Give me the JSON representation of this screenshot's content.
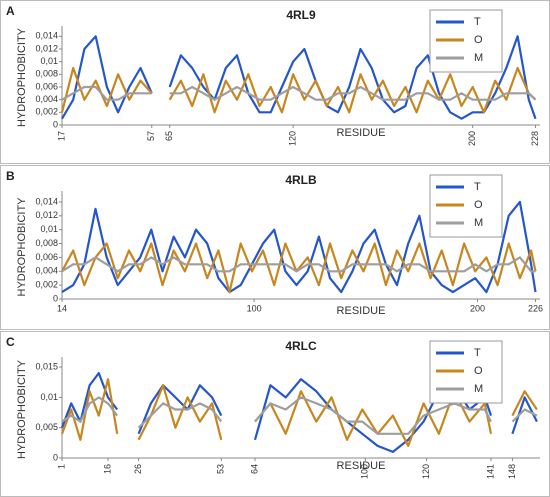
{
  "chart_data": [
    {
      "type": "line",
      "label": "A",
      "title": "4RL9",
      "xlabel": "RESIDUE",
      "ylabel": "HYDROPHOBICITY",
      "legend": "upper right",
      "grid": false,
      "x": [
        17,
        22,
        27,
        32,
        37,
        42,
        47,
        52,
        57,
        61,
        65,
        70,
        75,
        80,
        85,
        90,
        95,
        100,
        105,
        110,
        115,
        120,
        125,
        130,
        135,
        140,
        145,
        150,
        155,
        160,
        165,
        170,
        175,
        180,
        185,
        190,
        195,
        200,
        205,
        210,
        215,
        220,
        225,
        228
      ],
      "xlim": [
        17,
        230
      ],
      "xticks": [
        17,
        57,
        65,
        120,
        200,
        228
      ],
      "ylim": [
        0,
        0.015
      ],
      "yticks": [
        0,
        {
          "value": 0.002,
          "label": "0,002"
        },
        {
          "value": 0.004,
          "label": "0,004"
        },
        {
          "value": 0.006,
          "label": "0,006"
        },
        {
          "value": 0.008,
          "label": "0,008"
        },
        {
          "value": 0.01,
          "label": "0,01"
        },
        {
          "value": 0.012,
          "label": "0,012"
        },
        {
          "value": 0.014,
          "label": "0,014"
        }
      ],
      "series": [
        {
          "name": "T",
          "color": "#2456cc",
          "values": [
            0.001,
            0.004,
            0.012,
            0.014,
            0.006,
            0.002,
            0.006,
            0.009,
            0.005,
            null,
            0.006,
            0.011,
            0.009,
            0.006,
            0.004,
            0.009,
            0.011,
            0.005,
            0.002,
            0.002,
            0.006,
            0.01,
            0.012,
            0.007,
            0.003,
            0.002,
            0.006,
            0.012,
            0.009,
            0.004,
            0.002,
            0.003,
            0.009,
            0.011,
            0.005,
            0.002,
            0.001,
            0.002,
            0.002,
            0.005,
            0.009,
            0.014,
            0.004,
            0.001
          ]
        },
        {
          "name": "O",
          "color": "#c8861e",
          "values": [
            0.002,
            0.009,
            0.004,
            0.007,
            0.003,
            0.008,
            0.004,
            0.007,
            0.005,
            null,
            0.004,
            0.007,
            0.003,
            0.008,
            0.002,
            0.007,
            0.004,
            0.008,
            0.003,
            0.006,
            0.002,
            0.008,
            0.004,
            0.007,
            0.003,
            0.006,
            0.002,
            0.008,
            0.004,
            0.007,
            0.003,
            0.006,
            0.002,
            0.007,
            0.004,
            0.008,
            0.003,
            0.006,
            0.002,
            0.007,
            0.004,
            0.009,
            0.005,
            0.004
          ]
        },
        {
          "name": "M",
          "color": "#9e9e9e",
          "values": [
            0.004,
            0.005,
            0.006,
            0.006,
            0.004,
            0.004,
            0.005,
            0.005,
            0.005,
            null,
            0.005,
            0.005,
            0.006,
            0.005,
            0.004,
            0.005,
            0.006,
            0.005,
            0.004,
            0.004,
            0.005,
            0.006,
            0.005,
            0.004,
            0.004,
            0.005,
            0.005,
            0.006,
            0.005,
            0.004,
            0.004,
            0.004,
            0.005,
            0.005,
            0.004,
            0.004,
            0.005,
            0.004,
            0.004,
            0.004,
            0.005,
            0.005,
            0.005,
            0.004
          ]
        }
      ]
    },
    {
      "type": "line",
      "label": "B",
      "title": "4RLB",
      "xlabel": "RESIDUE",
      "ylabel": "HYDROPHOBICITY",
      "legend": "upper right",
      "grid": false,
      "x": [
        14,
        19,
        24,
        29,
        34,
        39,
        44,
        49,
        54,
        59,
        64,
        69,
        74,
        79,
        84,
        89,
        94,
        99,
        104,
        109,
        114,
        119,
        124,
        129,
        134,
        139,
        144,
        149,
        154,
        159,
        164,
        169,
        174,
        179,
        184,
        189,
        194,
        199,
        204,
        209,
        214,
        219,
        224,
        226
      ],
      "xlim": [
        14,
        228
      ],
      "xticks": [
        14,
        100,
        200,
        226
      ],
      "ylim": [
        0,
        0.015
      ],
      "yticks": [
        0,
        {
          "value": 0.002,
          "label": "0,002"
        },
        {
          "value": 0.004,
          "label": "0,004"
        },
        {
          "value": 0.006,
          "label": "0,006"
        },
        {
          "value": 0.008,
          "label": "0,008"
        },
        {
          "value": 0.01,
          "label": "0,01"
        },
        {
          "value": 0.012,
          "label": "0,012"
        },
        {
          "value": 0.014,
          "label": "0,014"
        }
      ],
      "series": [
        {
          "name": "T",
          "color": "#2456cc",
          "values": [
            0.001,
            0.002,
            0.005,
            0.013,
            0.006,
            0.002,
            0.004,
            0.006,
            0.01,
            0.004,
            0.009,
            0.006,
            0.01,
            0.008,
            0.003,
            0.001,
            0.002,
            0.005,
            0.008,
            0.01,
            0.004,
            0.002,
            0.004,
            0.009,
            0.003,
            0.001,
            0.004,
            0.008,
            0.01,
            0.005,
            0.002,
            0.008,
            0.012,
            0.004,
            0.002,
            0.001,
            0.002,
            0.003,
            0.001,
            0.005,
            0.012,
            0.014,
            0.005,
            0.001
          ]
        },
        {
          "name": "O",
          "color": "#c8861e",
          "values": [
            0.004,
            0.007,
            0.002,
            0.006,
            0.008,
            0.003,
            0.007,
            0.004,
            0.008,
            0.002,
            0.007,
            0.004,
            0.008,
            0.003,
            0.007,
            0.001,
            0.008,
            0.004,
            0.007,
            0.002,
            0.008,
            0.004,
            0.006,
            0.002,
            0.008,
            0.003,
            0.007,
            0.004,
            0.008,
            0.002,
            0.007,
            0.004,
            0.008,
            0.003,
            0.007,
            0.002,
            0.008,
            0.004,
            0.006,
            0.002,
            0.008,
            0.003,
            0.007,
            0.004
          ]
        },
        {
          "name": "M",
          "color": "#9e9e9e",
          "values": [
            0.004,
            0.005,
            0.005,
            0.006,
            0.005,
            0.004,
            0.005,
            0.005,
            0.006,
            0.005,
            0.006,
            0.005,
            0.005,
            0.005,
            0.004,
            0.004,
            0.005,
            0.005,
            0.005,
            0.005,
            0.005,
            0.004,
            0.005,
            0.005,
            0.004,
            0.004,
            0.005,
            0.005,
            0.005,
            0.005,
            0.004,
            0.005,
            0.005,
            0.004,
            0.004,
            0.004,
            0.004,
            0.005,
            0.004,
            0.005,
            0.005,
            0.006,
            0.004,
            0.004
          ]
        }
      ]
    },
    {
      "type": "line",
      "label": "C",
      "title": "4RLC",
      "xlabel": "RESIDUE",
      "ylabel": "HYDROPHOBICITY",
      "legend": "upper right",
      "grid": false,
      "x": [
        1,
        4,
        7,
        10,
        13,
        16,
        19,
        22,
        26,
        30,
        34,
        38,
        42,
        46,
        50,
        53,
        58,
        64,
        69,
        74,
        79,
        84,
        89,
        94,
        99,
        104,
        109,
        114,
        119,
        124,
        129,
        134,
        139,
        141,
        144,
        148,
        152,
        156
      ],
      "xlim": [
        1,
        157
      ],
      "xticks": [
        1,
        16,
        26,
        53,
        64,
        100,
        120,
        141,
        148
      ],
      "ylim": [
        0,
        0.016
      ],
      "yticks": [
        0,
        {
          "value": 0.005,
          "label": "0,005"
        },
        {
          "value": 0.01,
          "label": "0,01"
        },
        {
          "value": 0.015,
          "label": "0,015"
        }
      ],
      "series": [
        {
          "name": "T",
          "color": "#2456cc",
          "values": [
            0.005,
            0.009,
            0.006,
            0.012,
            0.014,
            0.01,
            0.008,
            null,
            0.004,
            0.009,
            0.012,
            0.01,
            0.008,
            0.012,
            0.01,
            0.007,
            null,
            0.003,
            0.012,
            0.01,
            0.013,
            0.011,
            0.008,
            0.006,
            0.004,
            0.002,
            0.001,
            0.003,
            0.006,
            0.011,
            0.012,
            0.008,
            0.01,
            0.007,
            null,
            0.004,
            0.01,
            0.006
          ]
        },
        {
          "name": "O",
          "color": "#c8861e",
          "values": [
            0.004,
            0.008,
            0.003,
            0.011,
            0.007,
            0.013,
            0.004,
            null,
            0.003,
            0.007,
            0.012,
            0.005,
            0.01,
            0.006,
            0.009,
            0.003,
            null,
            0.006,
            0.009,
            0.004,
            0.011,
            0.006,
            0.01,
            0.003,
            0.008,
            0.004,
            0.007,
            0.002,
            0.009,
            0.004,
            0.011,
            0.006,
            0.009,
            0.004,
            null,
            0.007,
            0.011,
            0.008
          ]
        },
        {
          "name": "M",
          "color": "#9e9e9e",
          "values": [
            0.006,
            0.007,
            0.006,
            0.009,
            0.01,
            0.009,
            0.007,
            null,
            0.005,
            0.007,
            0.009,
            0.008,
            0.008,
            0.009,
            0.008,
            0.006,
            null,
            0.006,
            0.009,
            0.008,
            0.01,
            0.009,
            0.008,
            0.006,
            0.006,
            0.004,
            0.004,
            0.004,
            0.007,
            0.008,
            0.009,
            0.008,
            0.008,
            0.006,
            null,
            0.006,
            0.008,
            0.007
          ]
        }
      ]
    }
  ]
}
